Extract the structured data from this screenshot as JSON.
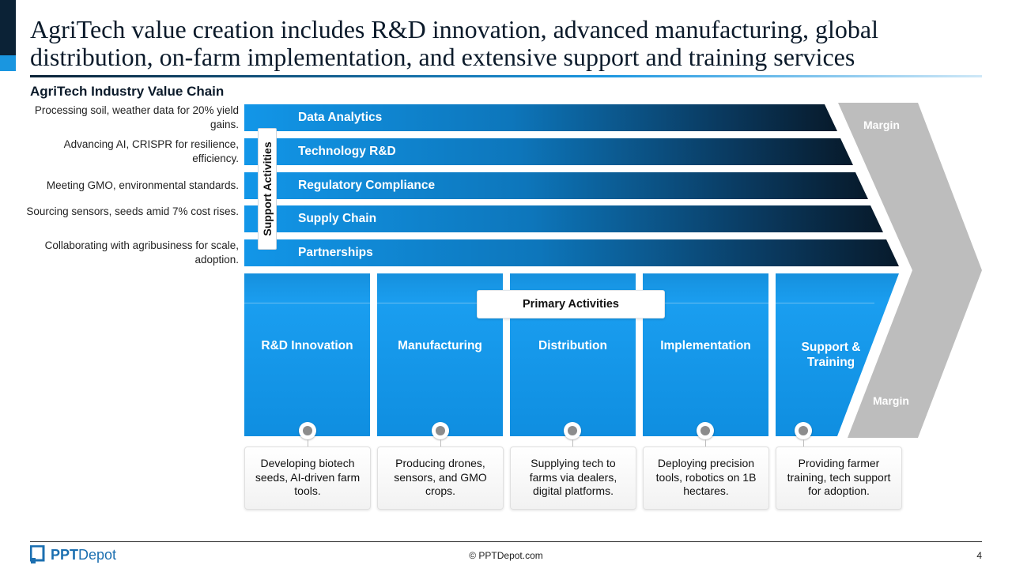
{
  "title": "AgriTech value creation includes R&D innovation, advanced manufacturing, global distribution, on-farm implementation, and extensive support and training services",
  "section_title": "AgriTech Industry Value Chain",
  "support": {
    "tab_label": "Support Activities",
    "activities": [
      {
        "label": "Data Analytics",
        "description": "Processing soil, weather data for 20% yield gains."
      },
      {
        "label": "Technology R&D",
        "description": "Advancing AI, CRISPR for resilience, efficiency."
      },
      {
        "label": "Regulatory Compliance",
        "description": "Meeting GMO, environmental standards."
      },
      {
        "label": "Supply Chain",
        "description": "Sourcing sensors, seeds amid 7% cost rises."
      },
      {
        "label": "Partnerships",
        "description": "Collaborating with agribusiness for scale, adoption."
      }
    ]
  },
  "primary": {
    "label": "Primary Activities",
    "activities": [
      {
        "label": "R&D Innovation",
        "description": "Developing biotech seeds, AI-driven farm tools."
      },
      {
        "label": "Manufacturing",
        "description": "Producing drones, sensors, and GMO crops."
      },
      {
        "label": "Distribution",
        "description": "Supplying tech to farms via dealers, digital platforms."
      },
      {
        "label": "Implementation",
        "description": "Deploying precision tools, robotics on 1B hectares."
      },
      {
        "label": "Support & Training",
        "description": "Providing farmer training, tech support for adoption."
      }
    ]
  },
  "margin": {
    "top_label": "Margin",
    "bottom_label": "Margin"
  },
  "footer": {
    "logo_bold": "PPT",
    "logo_rest": "Depot",
    "copyright": "© PPTDepot.com",
    "page_number": "4"
  },
  "colors": {
    "dark": "#0b2236",
    "accent": "#1a96e0",
    "margin_gray": "#bdbdbd"
  }
}
